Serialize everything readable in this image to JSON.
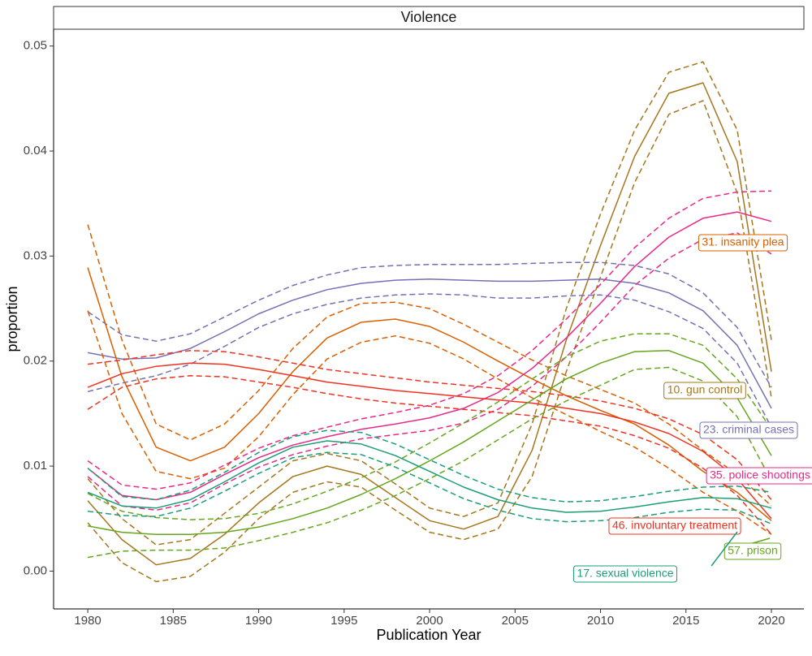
{
  "chart_data": {
    "type": "line",
    "title": "Violence",
    "x_label": "Publication Year",
    "y_label": "proportion",
    "x": [
      1980,
      1982,
      1984,
      1986,
      1988,
      1990,
      1992,
      1994,
      1996,
      1998,
      2000,
      2002,
      2004,
      2006,
      2008,
      2010,
      2012,
      2014,
      2016,
      2018,
      2020
    ],
    "xlim": [
      1978,
      2021.9
    ],
    "xticks": [
      1980,
      1985,
      1990,
      1995,
      2000,
      2005,
      2010,
      2015,
      2020
    ],
    "ylim": [
      -0.0036,
      0.0516
    ],
    "yticks": [
      {
        "value": 0,
        "label": "0.00"
      },
      {
        "value": 0.01,
        "label": "0.01"
      },
      {
        "value": 0.02,
        "label": "0.02"
      },
      {
        "value": 0.03,
        "label": "0.03"
      },
      {
        "value": 0.04,
        "label": "0.04"
      },
      {
        "value": 0.05,
        "label": "0.05"
      }
    ],
    "grid": false,
    "series": [
      {
        "name": "10. gun control",
        "color": "#a6761d",
        "values": [
          0.0067,
          0.003,
          0.0006,
          0.0012,
          0.0035,
          0.0065,
          0.009,
          0.01,
          0.0092,
          0.007,
          0.0048,
          0.004,
          0.0052,
          0.0115,
          0.022,
          0.031,
          0.0395,
          0.0455,
          0.0465,
          0.039,
          0.019
        ],
        "lower": [
          0.0046,
          0.0008,
          -0.001,
          -0.0005,
          0.0018,
          0.005,
          0.0075,
          0.0085,
          0.008,
          0.0058,
          0.0037,
          0.003,
          0.004,
          0.009,
          0.019,
          0.028,
          0.037,
          0.0435,
          0.0448,
          0.036,
          0.0165
        ],
        "upper": [
          0.0088,
          0.005,
          0.0025,
          0.003,
          0.0055,
          0.008,
          0.0105,
          0.0112,
          0.0105,
          0.0083,
          0.006,
          0.0052,
          0.0065,
          0.014,
          0.025,
          0.034,
          0.042,
          0.0475,
          0.0485,
          0.042,
          0.022
        ]
      },
      {
        "name": "23. criminal cases",
        "color": "#7570b3",
        "values": [
          0.0208,
          0.0202,
          0.0203,
          0.0212,
          0.0228,
          0.0245,
          0.0258,
          0.0268,
          0.0274,
          0.0277,
          0.0278,
          0.0277,
          0.0276,
          0.0276,
          0.0277,
          0.0278,
          0.0274,
          0.0265,
          0.0248,
          0.0215,
          0.0155
        ],
        "lower": [
          0.0171,
          0.0179,
          0.0186,
          0.0197,
          0.0214,
          0.0232,
          0.0245,
          0.0254,
          0.026,
          0.0263,
          0.0264,
          0.0263,
          0.026,
          0.026,
          0.0262,
          0.0263,
          0.0258,
          0.0247,
          0.0231,
          0.0198,
          0.0137
        ],
        "upper": [
          0.0247,
          0.0225,
          0.0219,
          0.0226,
          0.0242,
          0.0258,
          0.0272,
          0.0282,
          0.0289,
          0.0291,
          0.0292,
          0.0292,
          0.0292,
          0.0293,
          0.0294,
          0.0294,
          0.0291,
          0.0283,
          0.0265,
          0.0232,
          0.0175
        ]
      },
      {
        "name": "31. insanity plea",
        "color": "#d95f02",
        "values": [
          0.0289,
          0.0185,
          0.0118,
          0.0105,
          0.0118,
          0.015,
          0.019,
          0.0222,
          0.0237,
          0.024,
          0.0233,
          0.0218,
          0.02,
          0.0183,
          0.0167,
          0.0153,
          0.014,
          0.012,
          0.0095,
          0.0075,
          0.0048
        ],
        "lower": [
          0.0248,
          0.015,
          0.0095,
          0.0088,
          0.0098,
          0.0128,
          0.0168,
          0.0202,
          0.0218,
          0.0224,
          0.0217,
          0.0202,
          0.0183,
          0.0165,
          0.0149,
          0.0133,
          0.0118,
          0.0098,
          0.0075,
          0.0057,
          0.0035
        ],
        "upper": [
          0.033,
          0.022,
          0.014,
          0.0125,
          0.014,
          0.0172,
          0.0212,
          0.0242,
          0.0255,
          0.0256,
          0.025,
          0.0235,
          0.0218,
          0.0201,
          0.0186,
          0.0173,
          0.016,
          0.014,
          0.0115,
          0.0092,
          0.0062
        ]
      },
      {
        "name": "35. police shootings",
        "color": "#e7298a",
        "values": [
          0.0098,
          0.0072,
          0.0068,
          0.0075,
          0.0092,
          0.0108,
          0.012,
          0.0128,
          0.0135,
          0.014,
          0.0146,
          0.0155,
          0.017,
          0.0193,
          0.0222,
          0.0255,
          0.029,
          0.0318,
          0.0336,
          0.0342,
          0.0333
        ],
        "lower": [
          0.009,
          0.0062,
          0.0058,
          0.0065,
          0.0083,
          0.0099,
          0.0111,
          0.0119,
          0.0126,
          0.013,
          0.0134,
          0.0141,
          0.0154,
          0.0176,
          0.0204,
          0.0237,
          0.0272,
          0.0298,
          0.0316,
          0.0322,
          0.0302
        ],
        "upper": [
          0.0105,
          0.0082,
          0.0078,
          0.0084,
          0.0101,
          0.0117,
          0.0129,
          0.0137,
          0.0145,
          0.0151,
          0.0158,
          0.0169,
          0.0186,
          0.021,
          0.024,
          0.0273,
          0.0308,
          0.0336,
          0.0355,
          0.0361,
          0.0362
        ]
      },
      {
        "name": "46. involuntary treatment",
        "color": "#ee3322",
        "values": [
          0.0175,
          0.0188,
          0.0195,
          0.0198,
          0.0197,
          0.0192,
          0.0186,
          0.018,
          0.0176,
          0.0172,
          0.0169,
          0.0166,
          0.0163,
          0.016,
          0.0155,
          0.015,
          0.0142,
          0.0131,
          0.0114,
          0.0088,
          0.005
        ],
        "lower": [
          0.0154,
          0.0175,
          0.0183,
          0.0186,
          0.0185,
          0.018,
          0.0175,
          0.0169,
          0.0164,
          0.016,
          0.0157,
          0.0154,
          0.0151,
          0.0148,
          0.0143,
          0.0138,
          0.0129,
          0.0117,
          0.0098,
          0.0072,
          0.0035
        ],
        "upper": [
          0.0197,
          0.0201,
          0.0206,
          0.021,
          0.0209,
          0.0204,
          0.0198,
          0.0192,
          0.0188,
          0.0184,
          0.018,
          0.0177,
          0.0174,
          0.0171,
          0.0167,
          0.0162,
          0.0155,
          0.0145,
          0.013,
          0.0106,
          0.0068
        ]
      },
      {
        "name": "57. prison",
        "color": "#66a61e",
        "values": [
          0.0043,
          0.0037,
          0.0035,
          0.0035,
          0.0037,
          0.0042,
          0.005,
          0.006,
          0.0073,
          0.0088,
          0.0105,
          0.0123,
          0.0143,
          0.0163,
          0.0183,
          0.0198,
          0.0209,
          0.021,
          0.0198,
          0.0165,
          0.011
        ],
        "lower": [
          0.0013,
          0.0019,
          0.002,
          0.002,
          0.0022,
          0.0029,
          0.0037,
          0.0046,
          0.0058,
          0.0072,
          0.0088,
          0.0105,
          0.0125,
          0.0145,
          0.0162,
          0.0177,
          0.0192,
          0.0194,
          0.0181,
          0.0147,
          0.0086
        ],
        "upper": [
          0.0074,
          0.0057,
          0.0051,
          0.0049,
          0.005,
          0.0055,
          0.0064,
          0.0076,
          0.0089,
          0.0104,
          0.0122,
          0.0141,
          0.0161,
          0.0183,
          0.0204,
          0.0219,
          0.0226,
          0.0226,
          0.0215,
          0.0183,
          0.0135
        ]
      },
      {
        "name": "17. sexual violence",
        "color": "#1b9e77",
        "values": [
          0.0075,
          0.0062,
          0.006,
          0.0068,
          0.0085,
          0.0103,
          0.0118,
          0.0124,
          0.0121,
          0.011,
          0.0095,
          0.008,
          0.0068,
          0.006,
          0.0056,
          0.0057,
          0.0061,
          0.0066,
          0.007,
          0.0069,
          0.006
        ],
        "lower": [
          0.0057,
          0.0053,
          0.0052,
          0.006,
          0.0076,
          0.0093,
          0.0108,
          0.0113,
          0.0111,
          0.0099,
          0.0084,
          0.0069,
          0.0058,
          0.005,
          0.0047,
          0.0048,
          0.0051,
          0.0056,
          0.0059,
          0.0058,
          0.0045
        ],
        "upper": [
          0.0098,
          0.0071,
          0.0068,
          0.0077,
          0.0094,
          0.0113,
          0.0128,
          0.0134,
          0.0132,
          0.0121,
          0.0106,
          0.0091,
          0.0078,
          0.007,
          0.0066,
          0.0067,
          0.0071,
          0.0076,
          0.008,
          0.0081,
          0.0075
        ]
      }
    ]
  }
}
